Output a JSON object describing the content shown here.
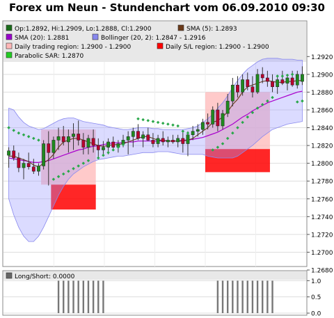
{
  "title": "Forex um Neun - Stundenchart vom 06.09.2010 09:30",
  "legend": [
    {
      "text": "Op:1.2892, Hi:1.2909, Lo:1.2888, Cl:1.2900",
      "color": "#1a6b1a"
    },
    {
      "text": "SMA (5): 1.2893",
      "color": "#6b3a1a"
    },
    {
      "text": "SMA (20): 1.2881",
      "color": "#9900cc"
    },
    {
      "text": "Bollinger (20, 2): 1.2847 - 1.2916",
      "color": "#8888ee"
    },
    {
      "text": "Daily trading region: 1.2900 - 1.2900",
      "color": "#ffb8b8"
    },
    {
      "text": "Daily S/L region: 1.2900 - 1.2900",
      "color": "#ff0000"
    },
    {
      "text": "Parabolic SAR: 1.2870",
      "color": "#22cc22"
    }
  ],
  "lower_legend": {
    "text": "Long/Short: 0.0000",
    "color": "#666666"
  },
  "chart_data": {
    "type": "candlestick",
    "y_ticks": [
      "1.2920",
      "1.2900",
      "1.2880",
      "1.2860",
      "1.2840",
      "1.2820",
      "1.2800",
      "1.2780",
      "1.2760",
      "1.2740",
      "1.2720",
      "1.2700",
      "1.2680"
    ],
    "ylim": [
      1.268,
      1.293
    ],
    "lower_ticks": [
      "1.0",
      "0.5",
      "0.0"
    ],
    "lower_ylim": [
      0,
      1.05
    ],
    "candles": [
      [
        1.2809,
        1.2818,
        1.2795,
        1.2814
      ],
      [
        1.2814,
        1.282,
        1.2803,
        1.2806
      ],
      [
        1.2806,
        1.2812,
        1.279,
        1.2795
      ],
      [
        1.2795,
        1.2805,
        1.2782,
        1.28
      ],
      [
        1.28,
        1.2812,
        1.2793,
        1.2796
      ],
      [
        1.2796,
        1.2805,
        1.2788,
        1.2791
      ],
      [
        1.2791,
        1.28,
        1.2786,
        1.2797
      ],
      [
        1.2797,
        1.2826,
        1.2793,
        1.2822
      ],
      [
        1.2822,
        1.2836,
        1.2775,
        1.2812
      ],
      [
        1.2812,
        1.283,
        1.2805,
        1.2826
      ],
      [
        1.2826,
        1.284,
        1.2815,
        1.283
      ],
      [
        1.283,
        1.2842,
        1.282,
        1.2824
      ],
      [
        1.2824,
        1.2838,
        1.2812,
        1.283
      ],
      [
        1.283,
        1.2845,
        1.2815,
        1.2833
      ],
      [
        1.2833,
        1.2848,
        1.282,
        1.2826
      ],
      [
        1.2826,
        1.2834,
        1.281,
        1.2818
      ],
      [
        1.2818,
        1.2832,
        1.281,
        1.2828
      ],
      [
        1.2828,
        1.2838,
        1.2812,
        1.282
      ],
      [
        1.282,
        1.2828,
        1.2806,
        1.2815
      ],
      [
        1.2815,
        1.2825,
        1.2808,
        1.2818
      ],
      [
        1.2818,
        1.2828,
        1.281,
        1.2824
      ],
      [
        1.2824,
        1.283,
        1.2814,
        1.2818
      ],
      [
        1.2818,
        1.2826,
        1.2812,
        1.2822
      ],
      [
        1.2822,
        1.2832,
        1.2818,
        1.2826
      ],
      [
        1.2826,
        1.2836,
        1.281,
        1.283
      ],
      [
        1.283,
        1.284,
        1.2818,
        1.2836
      ],
      [
        1.2836,
        1.2844,
        1.2826,
        1.2828
      ],
      [
        1.2828,
        1.2836,
        1.2818,
        1.2832
      ],
      [
        1.2832,
        1.284,
        1.2825,
        1.2826
      ],
      [
        1.2826,
        1.2834,
        1.2818,
        1.2822
      ],
      [
        1.2822,
        1.2832,
        1.2818,
        1.2828
      ],
      [
        1.2828,
        1.2836,
        1.282,
        1.2824
      ],
      [
        1.2824,
        1.283,
        1.2818,
        1.2826
      ],
      [
        1.2826,
        1.2832,
        1.2822,
        1.2824
      ],
      [
        1.2824,
        1.2832,
        1.2818,
        1.2828
      ],
      [
        1.2828,
        1.2836,
        1.2812,
        1.2822
      ],
      [
        1.2822,
        1.2836,
        1.2808,
        1.2832
      ],
      [
        1.2832,
        1.2842,
        1.2826,
        1.2836
      ],
      [
        1.2836,
        1.2844,
        1.283,
        1.2838
      ],
      [
        1.2838,
        1.285,
        1.2832,
        1.2846
      ],
      [
        1.2846,
        1.2856,
        1.2838,
        1.2844
      ],
      [
        1.2844,
        1.2864,
        1.284,
        1.286
      ],
      [
        1.286,
        1.2868,
        1.2836,
        1.2842
      ],
      [
        1.2842,
        1.286,
        1.2838,
        1.2856
      ],
      [
        1.2856,
        1.2878,
        1.2852,
        1.287
      ],
      [
        1.287,
        1.2896,
        1.2864,
        1.2888
      ],
      [
        1.2888,
        1.2898,
        1.2874,
        1.288
      ],
      [
        1.288,
        1.29,
        1.2876,
        1.2894
      ],
      [
        1.2894,
        1.2902,
        1.2882,
        1.2886
      ],
      [
        1.2886,
        1.2898,
        1.2874,
        1.288
      ],
      [
        1.288,
        1.2906,
        1.2878,
        1.29
      ],
      [
        1.29,
        1.2908,
        1.289,
        1.2896
      ],
      [
        1.2896,
        1.2904,
        1.2886,
        1.2892
      ],
      [
        1.2892,
        1.29,
        1.288,
        1.2886
      ],
      [
        1.2886,
        1.2898,
        1.2878,
        1.2894
      ],
      [
        1.2894,
        1.2904,
        1.2888,
        1.289
      ],
      [
        1.289,
        1.29,
        1.2882,
        1.2896
      ],
      [
        1.2896,
        1.2904,
        1.2886,
        1.2888
      ],
      [
        1.2888,
        1.2904,
        1.2884,
        1.29
      ],
      [
        1.2892,
        1.2909,
        1.2888,
        1.29
      ]
    ],
    "bollinger_upper": [
      1.2862,
      1.286,
      1.2852,
      1.2846,
      1.2842,
      1.284,
      1.2838,
      1.2839,
      1.2842,
      1.2845,
      1.2848,
      1.285,
      1.2851,
      1.2851,
      1.2849,
      1.2847,
      1.2846,
      1.2845,
      1.2844,
      1.2843,
      1.2841,
      1.284,
      1.2839,
      1.2838,
      1.2838,
      1.2839,
      1.284,
      1.284,
      1.284,
      1.2839,
      1.2839,
      1.2838,
      1.2838,
      1.2838,
      1.2838,
      1.2838,
      1.2839,
      1.284,
      1.2842,
      1.2846,
      1.285,
      1.2855,
      1.2862,
      1.2868,
      1.2876,
      1.2885,
      1.2893,
      1.29,
      1.2906,
      1.291,
      1.2914,
      1.2917,
      1.2918,
      1.2918,
      1.2918,
      1.2917,
      1.2917,
      1.2917,
      1.2916,
      1.2916
    ],
    "bollinger_lower": [
      1.276,
      1.2742,
      1.2728,
      1.2718,
      1.2712,
      1.2712,
      1.2718,
      1.2728,
      1.274,
      1.2752,
      1.2764,
      1.2774,
      1.2782,
      1.2788,
      1.2792,
      1.2796,
      1.2799,
      1.2802,
      1.2804,
      1.2805,
      1.2806,
      1.2807,
      1.2808,
      1.2808,
      1.2809,
      1.281,
      1.2811,
      1.2812,
      1.2812,
      1.2812,
      1.2813,
      1.2813,
      1.2813,
      1.2812,
      1.2811,
      1.281,
      1.281,
      1.281,
      1.281,
      1.281,
      1.2808,
      1.2807,
      1.2806,
      1.2806,
      1.2806,
      1.2806,
      1.2808,
      1.2812,
      1.2816,
      1.282,
      1.2825,
      1.283,
      1.2834,
      1.2838,
      1.284,
      1.2842,
      1.2844,
      1.2845,
      1.2846,
      1.2847
    ],
    "sma5": [
      1.2808,
      1.2808,
      1.2806,
      1.2804,
      1.2802,
      1.2798,
      1.2796,
      1.28,
      1.2804,
      1.281,
      1.2818,
      1.2824,
      1.2826,
      1.2828,
      1.2828,
      1.2826,
      1.2824,
      1.2822,
      1.282,
      1.2819,
      1.282,
      1.2821,
      1.2821,
      1.2822,
      1.2824,
      1.2826,
      1.2828,
      1.283,
      1.283,
      1.2828,
      1.2826,
      1.2826,
      1.2825,
      1.2825,
      1.2825,
      1.2825,
      1.2826,
      1.2828,
      1.2832,
      1.2836,
      1.284,
      1.2846,
      1.2848,
      1.2852,
      1.2858,
      1.2866,
      1.2872,
      1.288,
      1.2886,
      1.2888,
      1.289,
      1.2892,
      1.2893,
      1.2892,
      1.2891,
      1.2891,
      1.2892,
      1.2892,
      1.2893,
      1.2893
    ],
    "sma20": [
      1.2806,
      1.2805,
      1.2804,
      1.2803,
      1.2802,
      1.2801,
      1.2801,
      1.2802,
      1.2803,
      1.2805,
      1.2807,
      1.2809,
      1.2811,
      1.2813,
      1.2815,
      1.2816,
      1.2818,
      1.2819,
      1.282,
      1.2821,
      1.2822,
      1.2823,
      1.2823,
      1.2823,
      1.2824,
      1.2824,
      1.2825,
      1.2825,
      1.2825,
      1.2825,
      1.2825,
      1.2825,
      1.2825,
      1.2825,
      1.2825,
      1.2826,
      1.2826,
      1.2827,
      1.2828,
      1.2829,
      1.2831,
      1.2833,
      1.2835,
      1.2838,
      1.2841,
      1.2844,
      1.2848,
      1.2852,
      1.2855,
      1.2859,
      1.2862,
      1.2865,
      1.2868,
      1.287,
      1.2872,
      1.2874,
      1.2876,
      1.2878,
      1.288,
      1.2881
    ],
    "sar": [
      [
        0,
        1.284
      ],
      [
        1,
        1.2837
      ],
      [
        2,
        1.2834
      ],
      [
        3,
        1.2832
      ],
      [
        4,
        1.283
      ],
      [
        5,
        1.2828
      ],
      [
        6,
        1.2826
      ],
      [
        9,
        1.2782
      ],
      [
        10,
        1.2785
      ],
      [
        11,
        1.2788
      ],
      [
        12,
        1.2791
      ],
      [
        13,
        1.2794
      ],
      [
        14,
        1.2797
      ],
      [
        15,
        1.28
      ],
      [
        16,
        1.2803
      ],
      [
        18,
        1.2806
      ],
      [
        19,
        1.2809
      ],
      [
        20,
        1.2812
      ],
      [
        21,
        1.2815
      ],
      [
        22,
        1.2818
      ],
      [
        23,
        1.2821
      ],
      [
        26,
        1.285
      ],
      [
        27,
        1.2849
      ],
      [
        28,
        1.2848
      ],
      [
        29,
        1.2847
      ],
      [
        30,
        1.2846
      ],
      [
        31,
        1.2845
      ],
      [
        32,
        1.2844
      ],
      [
        33,
        1.2843
      ],
      [
        34,
        1.2842
      ],
      [
        35,
        1.2836
      ],
      [
        36,
        1.2834
      ],
      [
        41,
        1.2815
      ],
      [
        42,
        1.2818
      ],
      [
        43,
        1.2822
      ],
      [
        44,
        1.2828
      ],
      [
        45,
        1.2834
      ],
      [
        46,
        1.284
      ],
      [
        47,
        1.2846
      ],
      [
        48,
        1.2852
      ],
      [
        49,
        1.2857
      ],
      [
        50,
        1.2862
      ],
      [
        51,
        1.2866
      ],
      [
        52,
        1.287
      ],
      [
        53,
        1.2874
      ],
      [
        54,
        1.2898
      ],
      [
        55,
        1.2898
      ],
      [
        56,
        1.2899
      ],
      [
        57,
        1.29
      ],
      [
        58,
        1.2869
      ],
      [
        59,
        1.287
      ]
    ],
    "trading_regions": [
      [
        7,
        17,
        1.2776,
        1.2838
      ],
      [
        40,
        52,
        1.2816,
        1.288
      ]
    ],
    "sl_regions": [
      [
        9,
        17,
        1.2748,
        1.2776
      ],
      [
        40,
        52,
        1.279,
        1.2816
      ]
    ],
    "long_short": [
      0,
      0,
      0,
      0,
      0,
      0,
      0,
      0,
      0,
      0,
      1,
      1,
      1,
      1,
      1,
      1,
      1,
      1,
      1,
      1,
      0,
      0,
      0,
      0,
      0,
      0,
      0,
      0,
      0,
      0,
      0,
      0,
      0,
      0,
      0,
      0,
      0,
      0,
      0,
      0,
      0,
      0,
      1,
      1,
      1,
      1,
      1,
      1,
      1,
      1,
      1,
      1,
      1,
      1,
      0,
      0,
      0,
      0,
      0,
      0
    ]
  }
}
